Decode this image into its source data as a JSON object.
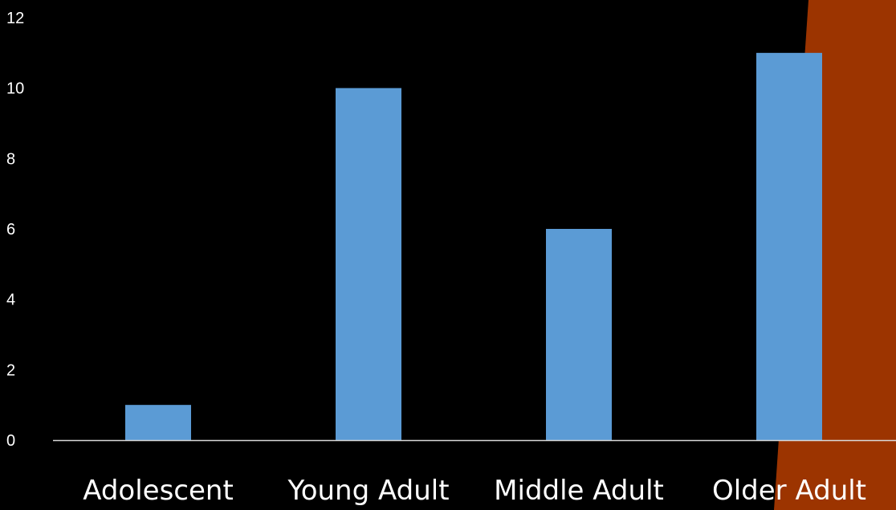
{
  "chart_data": {
    "type": "bar",
    "categories": [
      "Adolescent",
      "Young Adult",
      "Middle Adult",
      "Older Adult"
    ],
    "values": [
      1,
      10,
      6,
      11
    ],
    "ylim": [
      0,
      12
    ],
    "yticks": [
      0,
      2,
      4,
      6,
      8,
      10,
      12
    ],
    "grid": false,
    "legend": "none"
  },
  "colors": {
    "background": "#000000",
    "bar": "#5b9bd5",
    "axis": "#d9d9d9",
    "text": "#ffffff",
    "accent_shape": "#9c3400"
  }
}
